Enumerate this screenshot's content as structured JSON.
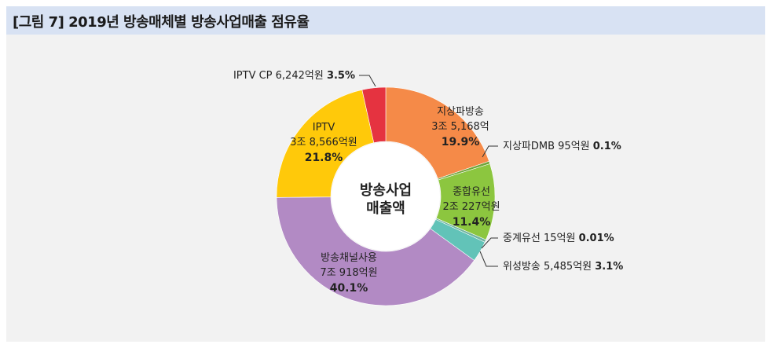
{
  "title": "[그림 7]  2019년 방송매체별 방송사업매출 점유율",
  "chart_data": {
    "type": "pie",
    "center_label": [
      "방송사업",
      "매출액"
    ],
    "slices": [
      {
        "name": "지상파방송",
        "amount": "3조 5,168억",
        "value": 19.9,
        "pct": "19.9%",
        "color": "#f58a48",
        "label": "inside"
      },
      {
        "name": "지상파DMB",
        "amount": "95억원",
        "value": 0.1,
        "pct": "0.1%",
        "color": "#6fa53a",
        "label": "callout"
      },
      {
        "name": "종합유선",
        "amount": "2조 227억원",
        "value": 11.4,
        "pct": "11.4%",
        "color": "#8cc63f",
        "label": "inside"
      },
      {
        "name": "중계유선",
        "amount": "15억원",
        "value": 0.01,
        "pct": "0.01%",
        "color": "#6fb3a0",
        "label": "callout"
      },
      {
        "name": "위성방송",
        "amount": "5,485억원",
        "value": 3.1,
        "pct": "3.1%",
        "color": "#62c3b8",
        "label": "callout"
      },
      {
        "name": "방송채널사용",
        "amount": "7조 918억원",
        "value": 40.1,
        "pct": "40.1%",
        "color": "#b28ac4",
        "label": "inside"
      },
      {
        "name": "IPTV",
        "amount": "3조 8,566억원",
        "value": 21.8,
        "pct": "21.8%",
        "color": "#ffc90a",
        "label": "inside"
      },
      {
        "name": "IPTV CP",
        "amount": "6,242억원",
        "value": 3.5,
        "pct": "3.5%",
        "color": "#e53340",
        "label": "callout"
      }
    ]
  }
}
